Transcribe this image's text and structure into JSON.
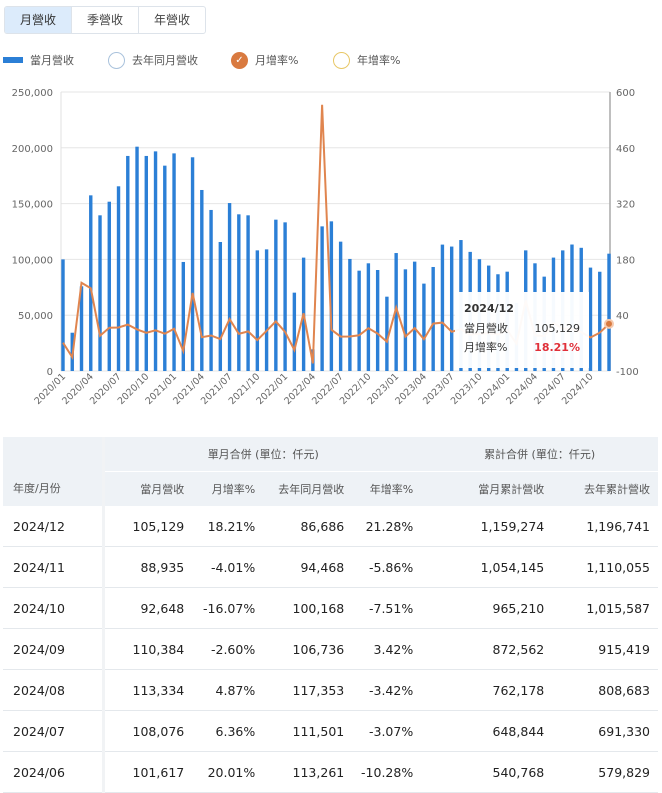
{
  "tabs": [
    {
      "label": "月營收",
      "active": true
    },
    {
      "label": "季營收",
      "active": false
    },
    {
      "label": "年營收",
      "active": false
    }
  ],
  "legend": [
    {
      "label": "當月營收",
      "color": "#2b7fd6",
      "icon": "bar-swatch"
    },
    {
      "label": "去年同月營收",
      "color": "#a9c2dc",
      "icon": "circle-outline"
    },
    {
      "label": "月增率%",
      "color": "#d97a40",
      "icon": "check-circle-filled"
    },
    {
      "label": "年增率%",
      "color": "#e8c766",
      "icon": "circle-outline"
    }
  ],
  "colors": {
    "bar": "#2b7fd6",
    "mom_line": "#e0854f",
    "grid": "#e6e6e6",
    "negative_highlight": "#e0303a"
  },
  "chart_data": {
    "type": "bar+line",
    "left_axis": {
      "ticks": [
        "0",
        "50,000",
        "100,000",
        "150,000",
        "200,000",
        "250,000"
      ],
      "range": [
        0,
        250000
      ]
    },
    "right_axis": {
      "ticks": [
        "-100",
        "40",
        "180",
        "320",
        "460",
        "600"
      ],
      "range": [
        -100,
        600
      ]
    },
    "x_tick_labels": [
      "2020/01",
      "2020/04",
      "2020/07",
      "2020/10",
      "2021/01",
      "2021/04",
      "2021/07",
      "2021/10",
      "2022/01",
      "2022/04",
      "2022/07",
      "2022/10",
      "2023/01",
      "2023/04",
      "2023/07",
      "2023/10",
      "2024/01",
      "2024/04",
      "2024/07",
      "2024/10"
    ],
    "x": [
      "2020/01",
      "2020/02",
      "2020/03",
      "2020/04",
      "2020/05",
      "2020/06",
      "2020/07",
      "2020/08",
      "2020/09",
      "2020/10",
      "2020/11",
      "2020/12",
      "2021/01",
      "2021/02",
      "2021/03",
      "2021/04",
      "2021/05",
      "2021/06",
      "2021/07",
      "2021/08",
      "2021/09",
      "2021/10",
      "2021/11",
      "2021/12",
      "2022/01",
      "2022/02",
      "2022/03",
      "2022/04",
      "2022/05",
      "2022/06",
      "2022/07",
      "2022/08",
      "2022/09",
      "2022/10",
      "2022/11",
      "2022/12",
      "2023/01",
      "2023/02",
      "2023/03",
      "2023/04",
      "2023/05",
      "2023/06",
      "2023/07",
      "2023/08",
      "2023/09",
      "2023/10",
      "2023/11",
      "2023/12",
      "2024/01",
      "2024/02",
      "2024/03",
      "2024/04",
      "2024/05",
      "2024/06",
      "2024/07",
      "2024/08",
      "2024/09",
      "2024/10",
      "2024/11",
      "2024/12"
    ],
    "series": [
      {
        "name": "當月營收",
        "type": "bar",
        "axis": "left",
        "values": [
          100000,
          34300,
          75900,
          157400,
          139500,
          151700,
          165500,
          192700,
          201000,
          192700,
          196800,
          184000,
          195000,
          97700,
          191500,
          162200,
          144300,
          115600,
          150500,
          140400,
          139500,
          108100,
          109000,
          135600,
          133200,
          70200,
          101600,
          19400,
          129600,
          134100,
          115900,
          100400,
          89900,
          96500,
          90500,
          66600,
          105700,
          91100,
          98000,
          78300,
          93200,
          113261,
          111501,
          117353,
          106736,
          100168,
          94468,
          86686,
          89000,
          61000,
          108100,
          96500,
          84551,
          101617,
          108076,
          113334,
          110384,
          92648,
          88935,
          105129
        ]
      },
      {
        "name": "月增率%",
        "type": "line",
        "axis": "right",
        "values": [
          -29,
          -65.7,
          121.3,
          107.4,
          -11.4,
          8.7,
          9.1,
          16.4,
          4.3,
          -4.1,
          2.1,
          -6.5,
          6.0,
          -49.9,
          96.0,
          -15.3,
          -11.0,
          -19.9,
          30.2,
          -6.7,
          -0.6,
          -22.5,
          0.8,
          24.4,
          -1.8,
          -47.3,
          44.7,
          -80.9,
          568,
          3.5,
          -13.6,
          -13.4,
          -10.5,
          7.3,
          -6.2,
          -26.4,
          58.7,
          -13.8,
          7.6,
          -20.1,
          19.0,
          21.5,
          -1.6,
          5.1,
          -9.0,
          -6.4,
          -5.4,
          -8.3,
          2.8,
          -31.5,
          77.2,
          -10.7,
          -12.4,
          20.01,
          6.36,
          4.87,
          -2.6,
          -16.07,
          -4.01,
          18.21
        ]
      }
    ],
    "grid": true,
    "legend_position": "top-left"
  },
  "tooltip": {
    "title": "2024/12",
    "rows": [
      {
        "label": "當月營收",
        "value": "105,129"
      },
      {
        "label": "月增率%",
        "value": "18.21%"
      }
    ]
  },
  "table": {
    "group_headers": [
      "單月合併 (單位：仟元)",
      "累計合併 (單位：仟元)"
    ],
    "columns": [
      "年度/月份",
      "當月營收",
      "月增率%",
      "去年同月營收",
      "年增率%",
      "當月累計營收",
      "去年累計營收"
    ],
    "rows": [
      [
        "2024/12",
        "105,129",
        "18.21%",
        "86,686",
        "21.28%",
        "1,159,274",
        "1,196,741"
      ],
      [
        "2024/11",
        "88,935",
        "-4.01%",
        "94,468",
        "-5.86%",
        "1,054,145",
        "1,110,055"
      ],
      [
        "2024/10",
        "92,648",
        "-16.07%",
        "100,168",
        "-7.51%",
        "965,210",
        "1,015,587"
      ],
      [
        "2024/09",
        "110,384",
        "-2.60%",
        "106,736",
        "3.42%",
        "872,562",
        "915,419"
      ],
      [
        "2024/08",
        "113,334",
        "4.87%",
        "117,353",
        "-3.42%",
        "762,178",
        "808,683"
      ],
      [
        "2024/07",
        "108,076",
        "6.36%",
        "111,501",
        "-3.07%",
        "648,844",
        "691,330"
      ],
      [
        "2024/06",
        "101,617",
        "20.01%",
        "113,261",
        "-10.28%",
        "540,768",
        "579,829"
      ]
    ]
  }
}
